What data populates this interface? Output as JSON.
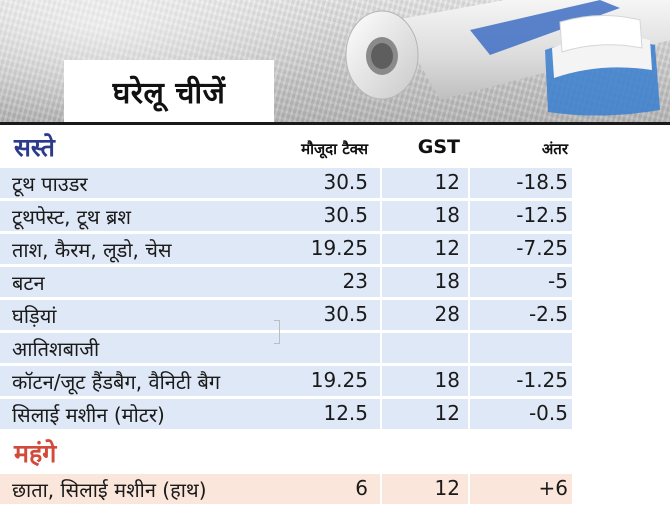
{
  "header": {
    "title": "घरेलू चीजें"
  },
  "columns": {
    "tax": "मौजूदा टैक्स",
    "gst": "GST",
    "diff": "अंतर"
  },
  "sections": [
    {
      "label": "सस्ते",
      "color": "#2c3a8c",
      "rows": [
        {
          "name": "टूथ पाउडर",
          "tax": "30.5",
          "gst": "12",
          "diff": "-18.5"
        },
        {
          "name": "टूथपेस्ट, टूथ ब्रश",
          "tax": "30.5",
          "gst": "18",
          "diff": "-12.5"
        },
        {
          "name": "ताश, कैरम, लूडो, चेस",
          "tax": "19.25",
          "gst": "12",
          "diff": "-7.25"
        },
        {
          "name": "बटन",
          "tax": "23",
          "gst": "18",
          "diff": "-5"
        },
        {
          "name": "घड़ियां",
          "tax": "30.5",
          "gst": "28",
          "diff": "-2.5"
        },
        {
          "name": "आतिशबाजी",
          "tax": "",
          "gst": "",
          "diff": ""
        },
        {
          "name": "कॉटन/जूट हैंडबैग, वैनिटी बैग",
          "tax": "19.25",
          "gst": "18",
          "diff": "-1.25"
        },
        {
          "name": "सिलाई मशीन (मोटर)",
          "tax": "12.5",
          "gst": "12",
          "diff": "-0.5"
        }
      ]
    },
    {
      "label": "महंगे",
      "color": "#d24a3a",
      "rows": [
        {
          "name": "छाता, सिलाई मशीन (हाथ)",
          "tax": "6",
          "gst": "12",
          "diff": "+6"
        }
      ]
    }
  ],
  "colors": {
    "cheap_row": "#dfe8f6",
    "costly_row": "#fbe6dc",
    "title_bg": "#ffffff"
  }
}
